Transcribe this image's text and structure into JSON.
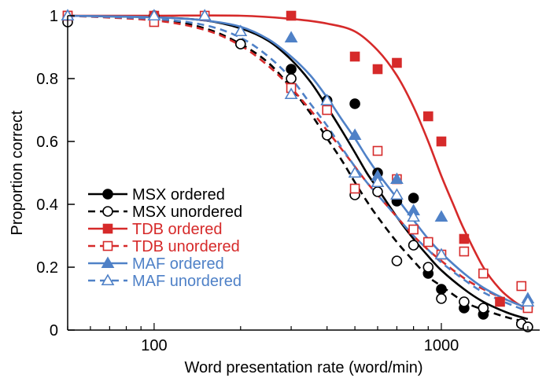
{
  "chart_data": {
    "type": "scatter",
    "xscale": "log",
    "xlim": [
      50,
      2200
    ],
    "ylim": [
      0,
      1
    ],
    "xlabel": "Word presentation rate (word/min)",
    "ylabel": "Proportion correct",
    "x_ticks": [
      100,
      1000
    ],
    "x_tick_labels": [
      "100",
      "1000"
    ],
    "y_ticks": [
      0,
      0.2,
      0.4,
      0.6,
      0.8,
      1
    ],
    "y_tick_labels": [
      "0",
      "0.2",
      "0.4",
      "0.6",
      "0.8",
      "1"
    ],
    "grid": false,
    "legend_position": "bottom-left",
    "series": [
      {
        "name": "MSX ordered",
        "color": "#000000",
        "marker": "circle",
        "filled": true,
        "line": "solid",
        "x": [
          50,
          100,
          200,
          300,
          400,
          500,
          600,
          700,
          800,
          900,
          1000,
          1200,
          1400,
          1900,
          2000
        ],
        "y": [
          0.99,
          1.0,
          0.91,
          0.83,
          0.73,
          0.72,
          0.5,
          0.41,
          0.42,
          0.18,
          0.13,
          0.07,
          0.05,
          0.02,
          0.01
        ],
        "fit_x": [
          50,
          100,
          150,
          200,
          250,
          300,
          350,
          400,
          450,
          500,
          550,
          600,
          700,
          800,
          900,
          1000,
          1200,
          1400,
          1700,
          2000
        ],
        "fit_y": [
          1.0,
          0.995,
          0.985,
          0.96,
          0.92,
          0.86,
          0.79,
          0.71,
          0.635,
          0.565,
          0.5,
          0.45,
          0.36,
          0.29,
          0.235,
          0.19,
          0.13,
          0.09,
          0.055,
          0.035
        ]
      },
      {
        "name": "MSX unordered",
        "color": "#000000",
        "marker": "circle",
        "filled": false,
        "line": "dashed",
        "x": [
          50,
          100,
          200,
          300,
          400,
          500,
          600,
          700,
          800,
          900,
          1000,
          1200,
          1400,
          1900,
          2000
        ],
        "y": [
          0.98,
          1.0,
          0.91,
          0.8,
          0.62,
          0.43,
          0.44,
          0.22,
          0.27,
          0.2,
          0.1,
          0.09,
          0.07,
          0.02,
          0.01
        ],
        "fit_x": [
          50,
          100,
          150,
          200,
          250,
          300,
          350,
          400,
          450,
          500,
          550,
          600,
          700,
          800,
          900,
          1000,
          1200,
          1400,
          1700,
          2000
        ],
        "fit_y": [
          1.0,
          0.99,
          0.96,
          0.91,
          0.85,
          0.77,
          0.69,
          0.61,
          0.54,
          0.47,
          0.41,
          0.36,
          0.28,
          0.22,
          0.17,
          0.14,
          0.09,
          0.065,
          0.04,
          0.025
        ]
      },
      {
        "name": "TDB ordered",
        "color": "#d62a2a",
        "marker": "square",
        "filled": true,
        "line": "solid",
        "x": [
          50,
          100,
          300,
          500,
          600,
          700,
          900,
          1000,
          1200,
          1600,
          2000
        ],
        "y": [
          1.0,
          1.0,
          1.0,
          0.87,
          0.83,
          0.85,
          0.68,
          0.6,
          0.29,
          0.09,
          0.08
        ],
        "fit_x": [
          50,
          100,
          200,
          300,
          400,
          500,
          600,
          700,
          800,
          900,
          1000,
          1100,
          1200,
          1400,
          1600,
          1800,
          2000
        ],
        "fit_y": [
          1.0,
          1.0,
          1.0,
          0.99,
          0.975,
          0.95,
          0.89,
          0.81,
          0.71,
          0.6,
          0.49,
          0.4,
          0.32,
          0.2,
          0.13,
          0.09,
          0.065
        ]
      },
      {
        "name": "TDB unordered",
        "color": "#d62a2a",
        "marker": "square",
        "filled": false,
        "line": "dashed",
        "x": [
          50,
          100,
          150,
          300,
          400,
          500,
          600,
          700,
          800,
          900,
          1000,
          1200,
          1400,
          1900,
          2000
        ],
        "y": [
          1.0,
          0.98,
          1.0,
          0.77,
          0.7,
          0.45,
          0.57,
          0.48,
          0.32,
          0.28,
          0.24,
          0.25,
          0.18,
          0.14,
          0.07
        ],
        "fit_x": [
          50,
          100,
          150,
          200,
          250,
          300,
          350,
          400,
          450,
          500,
          550,
          600,
          700,
          800,
          900,
          1000,
          1200,
          1400,
          1700,
          2000
        ],
        "fit_y": [
          1.0,
          0.985,
          0.955,
          0.905,
          0.84,
          0.77,
          0.7,
          0.635,
          0.575,
          0.52,
          0.47,
          0.43,
          0.36,
          0.3,
          0.255,
          0.22,
          0.165,
          0.13,
          0.095,
          0.07
        ]
      },
      {
        "name": "MAF ordered",
        "color": "#4f81c7",
        "marker": "triangle",
        "filled": true,
        "line": "solid",
        "x": [
          50,
          100,
          150,
          200,
          300,
          400,
          500,
          600,
          700,
          800,
          1000,
          2000
        ],
        "y": [
          1.0,
          1.0,
          1.0,
          0.95,
          0.93,
          0.73,
          0.62,
          0.49,
          0.48,
          0.38,
          0.36,
          0.1
        ],
        "fit_x": [
          50,
          100,
          150,
          200,
          250,
          300,
          350,
          400,
          450,
          500,
          550,
          600,
          700,
          800,
          900,
          1000,
          1200,
          1400,
          1700,
          2000
        ],
        "fit_y": [
          1.0,
          0.995,
          0.985,
          0.965,
          0.925,
          0.87,
          0.81,
          0.74,
          0.67,
          0.61,
          0.55,
          0.5,
          0.42,
          0.35,
          0.29,
          0.245,
          0.18,
          0.135,
          0.095,
          0.07
        ]
      },
      {
        "name": "MAF unordered",
        "color": "#4f81c7",
        "marker": "triangle",
        "filled": false,
        "line": "dashed",
        "x": [
          50,
          100,
          150,
          200,
          300,
          400,
          500,
          600,
          700,
          800,
          1000,
          2000
        ],
        "y": [
          1.0,
          1.0,
          1.0,
          0.95,
          0.75,
          0.73,
          0.5,
          0.47,
          0.43,
          0.36,
          0.24,
          0.09
        ],
        "fit_x": [
          50,
          100,
          150,
          200,
          250,
          300,
          350,
          400,
          450,
          500,
          550,
          600,
          700,
          800,
          900,
          1000,
          1200,
          1400,
          1700,
          2000
        ],
        "fit_y": [
          1.0,
          0.99,
          0.97,
          0.93,
          0.87,
          0.8,
          0.72,
          0.65,
          0.58,
          0.52,
          0.47,
          0.43,
          0.36,
          0.3,
          0.255,
          0.215,
          0.16,
          0.12,
          0.085,
          0.06
        ]
      }
    ]
  }
}
